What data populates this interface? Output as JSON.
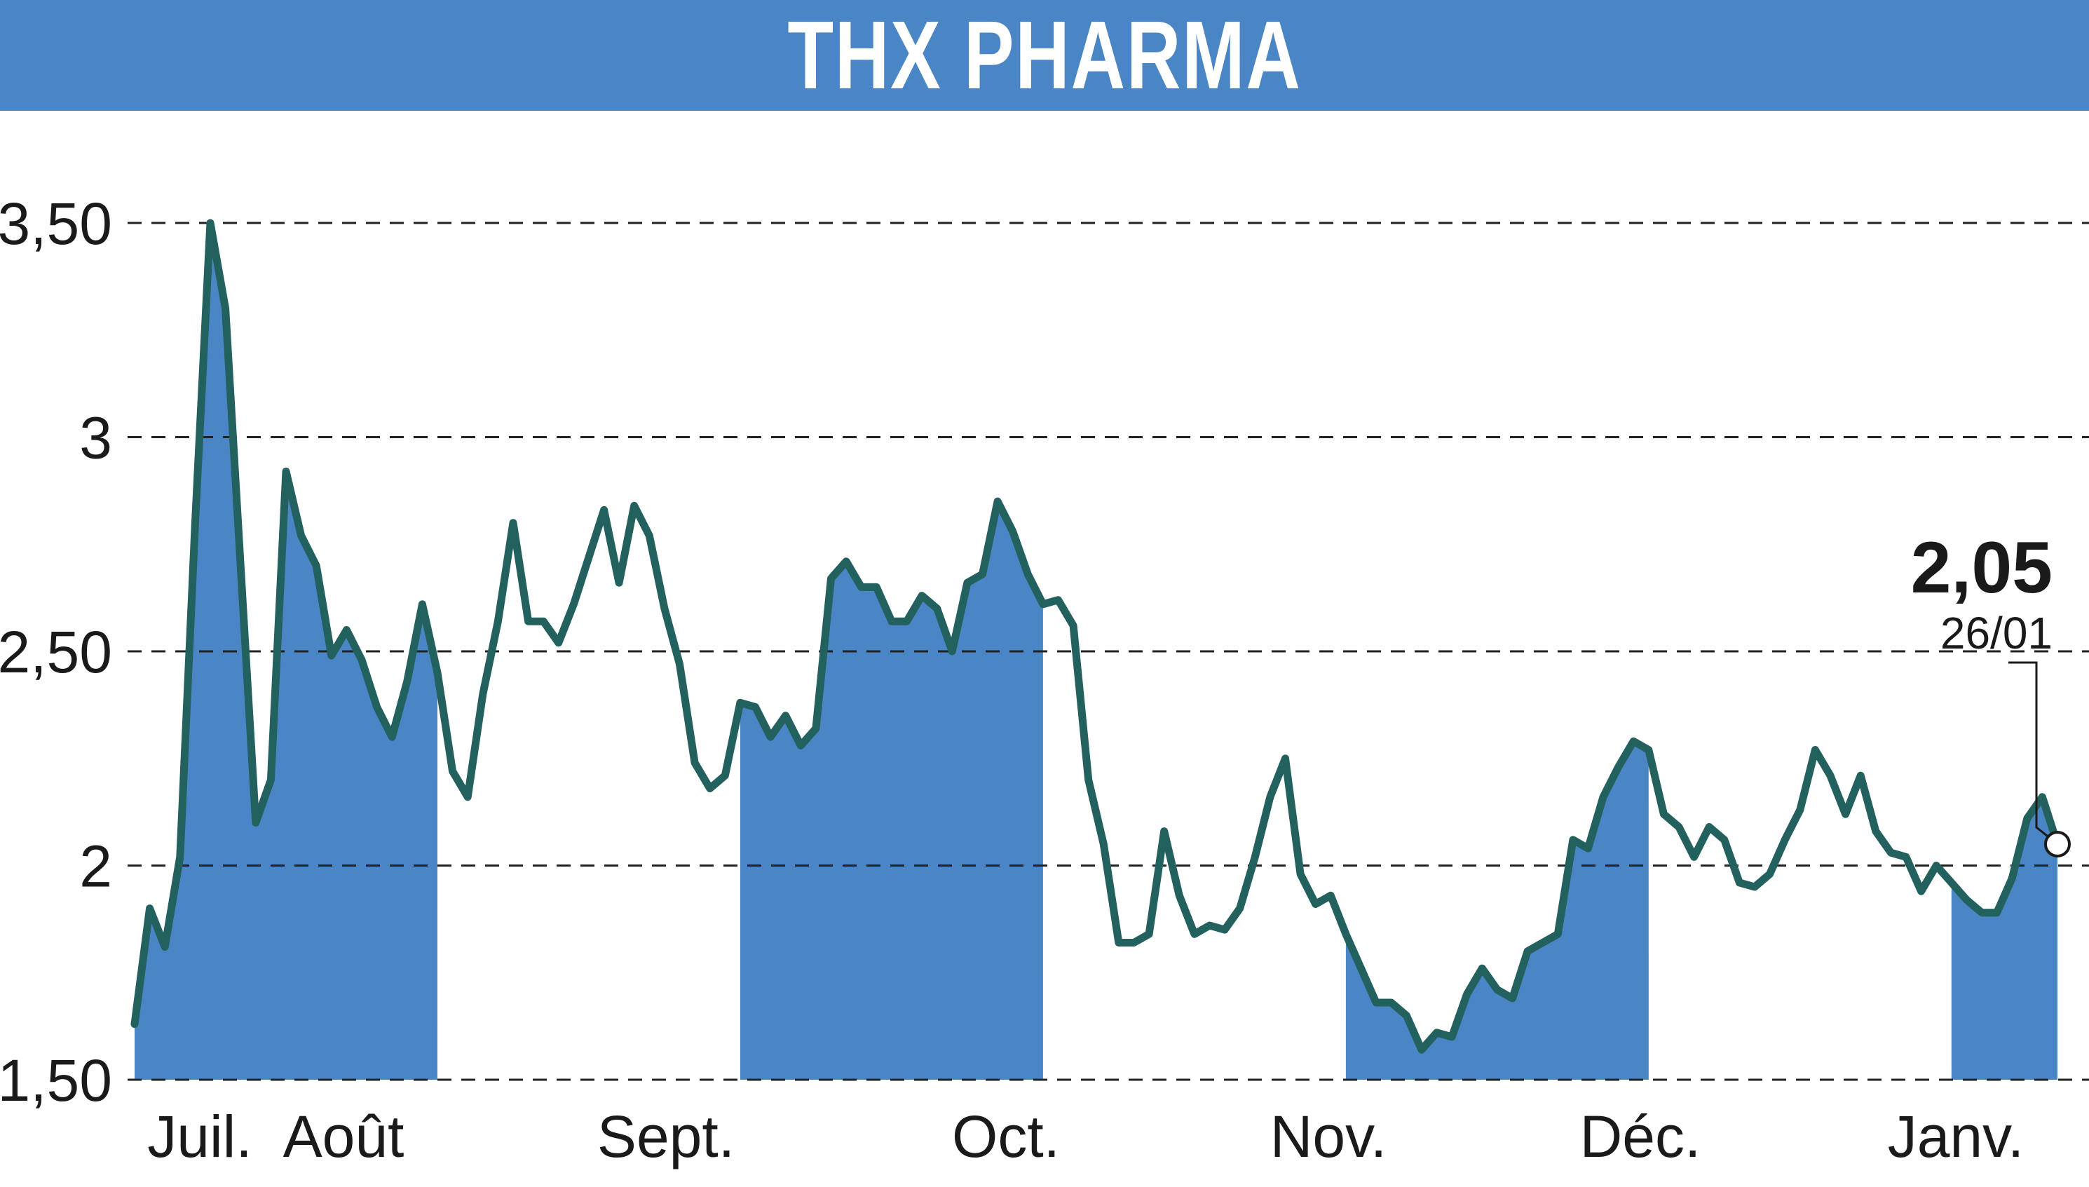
{
  "title": "THX PHARMA",
  "colors": {
    "banner": "#4a86c5",
    "fill": "#4a86c5",
    "line": "#23615e",
    "grid": "#222222",
    "text": "#1a1a1a"
  },
  "chart_data": {
    "type": "line",
    "title": "THX PHARMA",
    "ylim": [
      1.5,
      3.5
    ],
    "y_ticks": [
      {
        "value": 3.5,
        "label": "3,50"
      },
      {
        "value": 3.0,
        "label": "3"
      },
      {
        "value": 2.5,
        "label": "2,50"
      },
      {
        "value": 2.0,
        "label": "2"
      },
      {
        "value": 1.5,
        "label": "1,50"
      }
    ],
    "months": [
      "Juil.",
      "Août",
      "Sept.",
      "Oct.",
      "Nov.",
      "Déc.",
      "Janv."
    ],
    "shaded_periods": [
      "Juil.",
      "Sept.",
      "Nov.",
      "Janv."
    ],
    "grid": "dashed horizontal",
    "last_value": "2,05",
    "last_date": "26/01",
    "series": [
      {
        "values": [
          1.63,
          1.9,
          1.81,
          2.02,
          2.8,
          3.5,
          3.3,
          2.7,
          2.1,
          2.2,
          2.92,
          2.77,
          2.7,
          2.49,
          2.55,
          2.48,
          2.37,
          2.3,
          2.43,
          2.61,
          2.45,
          2.22,
          2.16,
          2.4,
          2.57,
          2.8,
          2.57,
          2.57,
          2.52,
          2.61,
          2.72,
          2.83,
          2.66,
          2.84,
          2.77,
          2.6,
          2.47,
          2.24,
          2.18,
          2.21,
          2.38,
          2.37,
          2.3,
          2.35,
          2.28,
          2.32,
          2.67,
          2.71,
          2.65,
          2.65,
          2.57,
          2.57,
          2.63,
          2.6,
          2.5,
          2.66,
          2.68,
          2.85,
          2.78,
          2.68,
          2.61,
          2.62,
          2.56,
          2.2,
          2.05,
          1.82,
          1.82,
          1.84,
          2.08,
          1.93,
          1.84,
          1.86,
          1.85,
          1.9,
          2.02,
          2.16,
          2.25,
          1.98,
          1.91,
          1.93,
          1.84,
          1.76,
          1.68,
          1.68,
          1.65,
          1.57,
          1.61,
          1.6,
          1.7,
          1.76,
          1.71,
          1.69,
          1.8,
          1.82,
          1.84,
          2.06,
          2.04,
          2.16,
          2.23,
          2.29,
          2.27,
          2.12,
          2.09,
          2.02,
          2.09,
          2.06,
          1.96,
          1.95,
          1.98,
          2.06,
          2.13,
          2.27,
          2.21,
          2.12,
          2.21,
          2.08,
          2.03,
          2.02,
          1.94,
          2.0,
          1.96,
          1.92,
          1.89,
          1.89,
          1.97,
          2.11,
          2.16,
          2.05
        ]
      }
    ]
  }
}
